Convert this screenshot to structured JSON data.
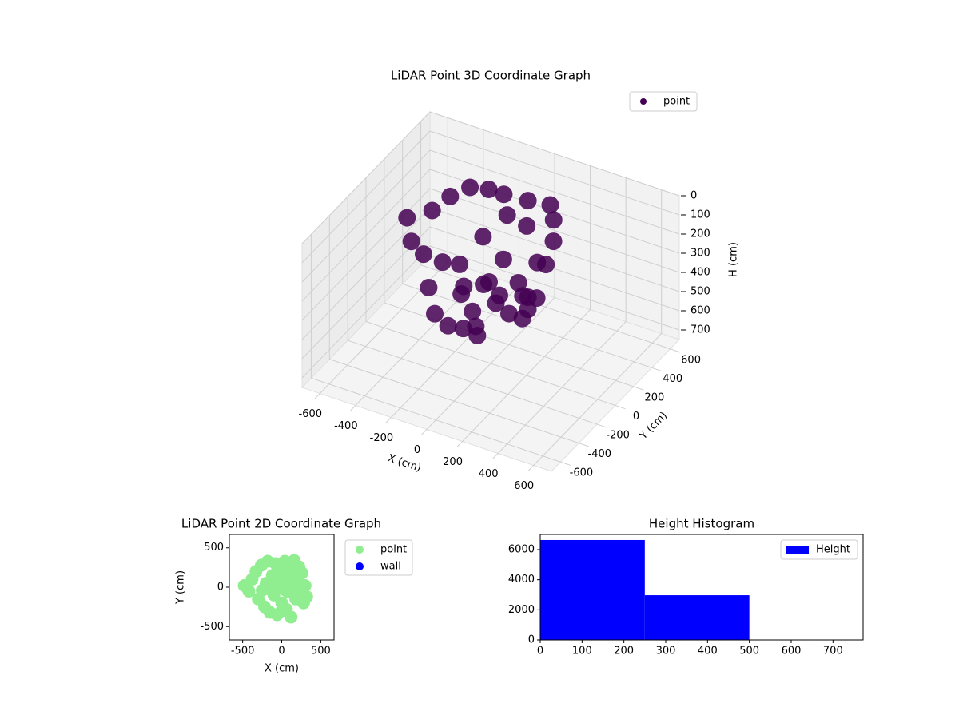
{
  "chart_data": [
    {
      "type": "scatter3d",
      "title": "LiDAR Point 3D Coordinate Graph",
      "xlabel": "X (cm)",
      "ylabel": "Y (cm)",
      "zlabel": "H (cm)",
      "xlim": [
        -700,
        700
      ],
      "ylim": [
        -700,
        700
      ],
      "zlim": [
        750,
        0
      ],
      "xticks": [
        -600,
        -400,
        -200,
        0,
        200,
        400,
        600
      ],
      "yticks": [
        -600,
        -400,
        -200,
        0,
        200,
        400,
        600
      ],
      "zticks": [
        0,
        100,
        200,
        300,
        400,
        500,
        600,
        700
      ],
      "grid": true,
      "legend": "upper right",
      "series": [
        {
          "name": "point",
          "color": "#440154",
          "x": [
            -480,
            -420,
            -380,
            -330,
            -300,
            -260,
            -220,
            -200,
            -180,
            -150,
            -120,
            -100,
            -80,
            -60,
            -40,
            -20,
            0,
            20,
            40,
            60,
            80,
            100,
            120,
            140,
            160,
            180,
            200,
            220,
            240,
            260,
            280,
            300,
            320,
            -250,
            -150,
            -50,
            50,
            150,
            250,
            0
          ],
          "y": [
            20,
            -50,
            100,
            200,
            -150,
            280,
            -250,
            50,
            330,
            -320,
            150,
            -100,
            300,
            -350,
            0,
            220,
            -200,
            100,
            330,
            -280,
            -60,
            200,
            -380,
            30,
            340,
            -150,
            120,
            260,
            -60,
            180,
            -200,
            20,
            -120,
            -40,
            -30,
            80,
            -40,
            60,
            -80,
            -300
          ],
          "z": [
            150,
            220,
            120,
            80,
            200,
            50,
            300,
            320,
            60,
            380,
            200,
            330,
            40,
            400,
            350,
            90,
            380,
            250,
            50,
            400,
            340,
            100,
            380,
            300,
            40,
            360,
            220,
            60,
            300,
            120,
            330,
            150,
            250,
            280,
            420,
            380,
            400,
            380,
            350,
            420
          ]
        }
      ]
    },
    {
      "type": "scatter",
      "title": "LiDAR Point 2D Coordinate Graph",
      "xlabel": "X (cm)",
      "ylabel": "Y (cm)",
      "xlim": [
        -670,
        670
      ],
      "ylim": [
        -670,
        670
      ],
      "xticks": [
        -500,
        0,
        500
      ],
      "yticks": [
        -500,
        0,
        500
      ],
      "legend": "outside right",
      "series": [
        {
          "name": "point",
          "color": "#90ee90",
          "x": [
            -480,
            -420,
            -380,
            -330,
            -300,
            -260,
            -220,
            -200,
            -180,
            -150,
            -120,
            -100,
            -80,
            -60,
            -40,
            -20,
            0,
            20,
            40,
            60,
            80,
            100,
            120,
            140,
            160,
            180,
            200,
            220,
            240,
            260,
            280,
            300,
            320,
            -250,
            -150,
            -50,
            50,
            150,
            250,
            0
          ],
          "y": [
            20,
            -50,
            100,
            200,
            -150,
            280,
            -250,
            50,
            330,
            -320,
            150,
            -100,
            300,
            -350,
            0,
            220,
            -200,
            100,
            330,
            -280,
            -60,
            200,
            -380,
            30,
            340,
            -150,
            120,
            260,
            -60,
            180,
            -200,
            20,
            -120,
            -40,
            -30,
            80,
            -40,
            60,
            -80,
            -300
          ]
        },
        {
          "name": "wall",
          "color": "#0000ff",
          "x": [],
          "y": []
        }
      ]
    },
    {
      "type": "hist",
      "title": "Height Histogram",
      "bins": [
        0,
        250,
        500
      ],
      "counts": [
        6640,
        2970
      ],
      "series_name": "Height",
      "color": "#0000ff",
      "legend": "upper right",
      "xlim": [
        0,
        772
      ],
      "ylim": [
        0,
        7010
      ],
      "xticks": [
        0,
        100,
        200,
        300,
        400,
        500,
        600,
        700
      ],
      "yticks": [
        0,
        2000,
        4000,
        6000
      ]
    }
  ]
}
